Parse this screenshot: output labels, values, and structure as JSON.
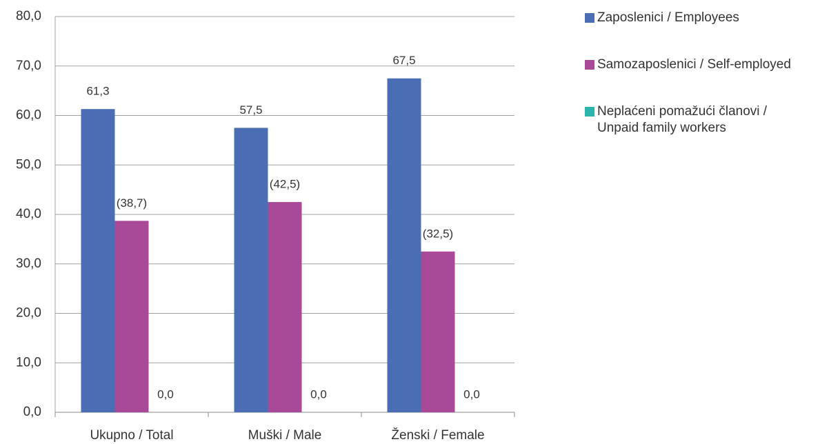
{
  "chart_data": {
    "type": "bar",
    "categories": [
      "Ukupno / Total",
      "Muški / Male",
      "Ženski / Female"
    ],
    "series": [
      {
        "name": "Zaposlenici / Employees",
        "color": "#4a6db3",
        "values": [
          61.3,
          57.5,
          67.5
        ],
        "value_labels": [
          "61,3",
          "57,5",
          "67,5"
        ]
      },
      {
        "name": "Samozaposlenici / Self-employed",
        "color": "#a84a98",
        "values": [
          38.7,
          42.5,
          32.5
        ],
        "value_labels": [
          "(38,7)",
          "(42,5)",
          "(32,5)"
        ]
      },
      {
        "name": "Neplaćeni pomažući članovi / Unpaid family workers",
        "color": "#2bb5ad",
        "values": [
          0,
          0,
          0
        ],
        "value_labels": [
          "0,0",
          "0,0",
          "0,0"
        ]
      }
    ],
    "ylim": [
      0,
      80
    ],
    "yticks": [
      {
        "value": 0,
        "label": "0,0"
      },
      {
        "value": 10,
        "label": "10,0"
      },
      {
        "value": 20,
        "label": "20,0"
      },
      {
        "value": 30,
        "label": "30,0"
      },
      {
        "value": 40,
        "label": "40,0"
      },
      {
        "value": 50,
        "label": "50,0"
      },
      {
        "value": 60,
        "label": "60,0"
      },
      {
        "value": 70,
        "label": "70,0"
      },
      {
        "value": 80,
        "label": "80,0"
      }
    ],
    "grid": true
  }
}
